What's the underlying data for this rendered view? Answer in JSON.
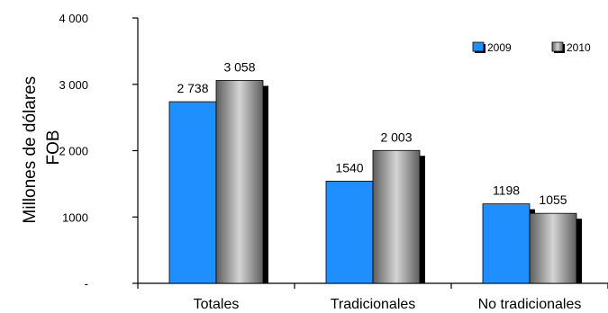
{
  "chart_data": {
    "type": "bar",
    "title": "",
    "ylabel_lines": [
      "Millones de dólares",
      "FOB"
    ],
    "categories": [
      "Totales",
      "Tradicionales",
      "No tradicionales"
    ],
    "series": [
      {
        "name": "2009",
        "values": [
          2738,
          1540,
          1198
        ],
        "labels": [
          "2 738",
          "1540",
          "1198"
        ],
        "color": "#1f8fff"
      },
      {
        "name": "2010",
        "values": [
          3058,
          2003,
          1055
        ],
        "labels": [
          "3 058",
          "2 003",
          "1055"
        ],
        "color": "#7a7a7a"
      }
    ],
    "ylim": [
      0,
      4000
    ],
    "yticks": [
      {
        "value": 0,
        "label": "-"
      },
      {
        "value": 1000,
        "label": "1000"
      },
      {
        "value": 2000,
        "label": "2 000"
      },
      {
        "value": 3000,
        "label": "3 000"
      },
      {
        "value": 4000,
        "label": "4 000"
      }
    ],
    "grid": false,
    "legend_position": "top-right"
  }
}
